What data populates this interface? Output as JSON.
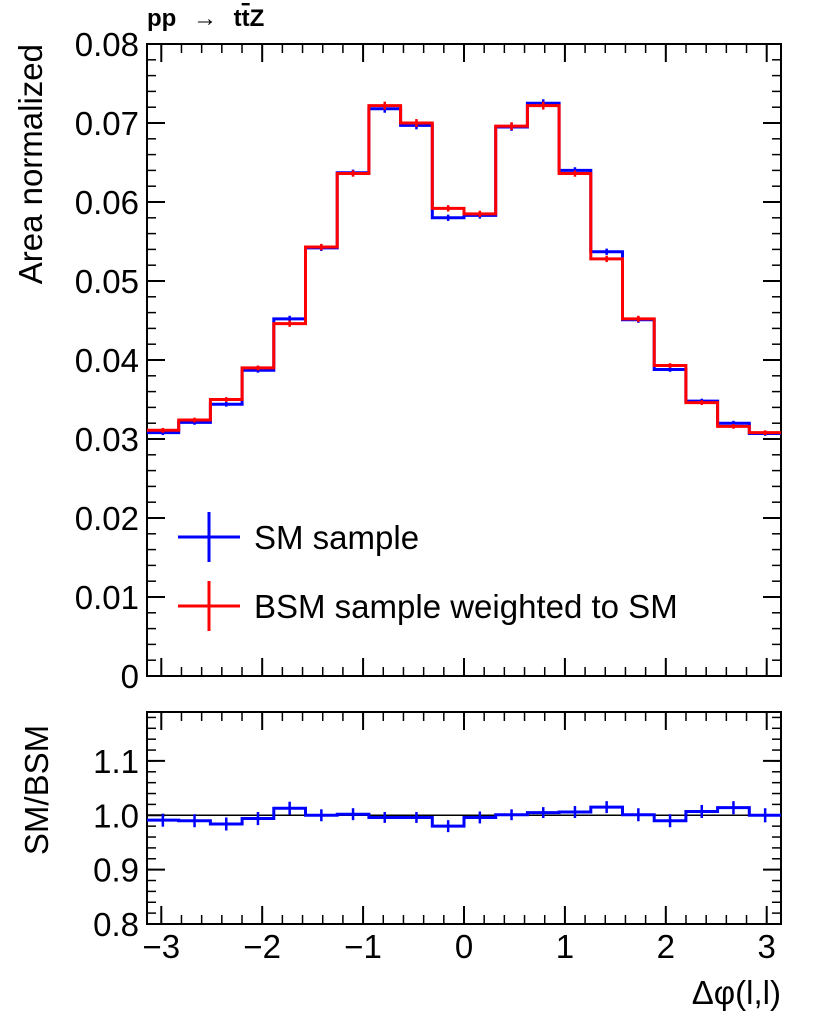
{
  "chart_data": [
    {
      "type": "line",
      "subtype": "step-histogram-with-errorbars",
      "title": "pp  →  t̅tZ",
      "title_parts": {
        "initial": "pp",
        "arrow": "→",
        "final_t": "t",
        "final_tbar": "t",
        "final_z": "Z"
      },
      "xlabel": "Δφ(l,l)",
      "ylabel": "Area normalized",
      "xlim": [
        -3.1416,
        3.1416
      ],
      "ylim": [
        0,
        0.08
      ],
      "bins": 20,
      "x_ticks": [
        -3,
        -2,
        -1,
        0,
        1,
        2,
        3
      ],
      "x_tick_labels": [
        "−3",
        "−2",
        "−1",
        "0",
        "1",
        "2",
        "3"
      ],
      "y_ticks": [
        0,
        0.01,
        0.02,
        0.03,
        0.04,
        0.05,
        0.06,
        0.07,
        0.08
      ],
      "y_tick_labels": [
        "0",
        "0.01",
        "0.02",
        "0.03",
        "0.04",
        "0.05",
        "0.06",
        "0.07",
        "0.08"
      ],
      "legend_position": "bottom-left",
      "series": [
        {
          "name": "SM sample",
          "color": "#0000ff",
          "values": [
            0.0308,
            0.0321,
            0.0344,
            0.0387,
            0.0452,
            0.0542,
            0.0637,
            0.0718,
            0.0697,
            0.058,
            0.0583,
            0.0695,
            0.0725,
            0.064,
            0.0537,
            0.0451,
            0.0388,
            0.0348,
            0.032,
            0.0307
          ],
          "errors": [
            0.0003,
            0.0003,
            0.0003,
            0.0003,
            0.0004,
            0.0004,
            0.0004,
            0.0005,
            0.0005,
            0.0004,
            0.0004,
            0.0005,
            0.0005,
            0.0004,
            0.0004,
            0.0004,
            0.0003,
            0.0003,
            0.0003,
            0.0003
          ]
        },
        {
          "name": "BSM sample weighted to SM",
          "color": "#ff0000",
          "values": [
            0.0311,
            0.0324,
            0.035,
            0.039,
            0.0446,
            0.0543,
            0.0636,
            0.0722,
            0.07,
            0.0592,
            0.0585,
            0.0696,
            0.0722,
            0.0636,
            0.0528,
            0.0452,
            0.0393,
            0.0346,
            0.0316,
            0.0308
          ],
          "errors": [
            0.0003,
            0.0003,
            0.0003,
            0.0003,
            0.0004,
            0.0004,
            0.0004,
            0.0005,
            0.0005,
            0.0004,
            0.0004,
            0.0005,
            0.0005,
            0.0004,
            0.0004,
            0.0004,
            0.0003,
            0.0003,
            0.0003,
            0.0003
          ]
        }
      ]
    },
    {
      "type": "line",
      "subtype": "ratio-step-with-errorbars",
      "xlabel": "Δφ(l,l)",
      "ylabel": "SM/BSM",
      "xlim": [
        -3.1416,
        3.1416
      ],
      "ylim": [
        0.8,
        1.19
      ],
      "reference_line": 1.0,
      "bins": 20,
      "x_ticks": [
        -3,
        -2,
        -1,
        0,
        1,
        2,
        3
      ],
      "x_tick_labels": [
        "−3",
        "−2",
        "−1",
        "0",
        "1",
        "2",
        "3"
      ],
      "y_ticks": [
        0.8,
        0.9,
        1.0,
        1.1
      ],
      "y_tick_labels": [
        "0.8",
        "0.9",
        "1.0",
        "1.1"
      ],
      "series": [
        {
          "name": "SM/BSM",
          "color": "#0000ff",
          "values": [
            0.991,
            0.99,
            0.984,
            0.994,
            1.013,
            1.0,
            1.002,
            0.996,
            0.996,
            0.98,
            0.996,
            1.001,
            1.005,
            1.006,
            1.015,
            1.001,
            0.99,
            1.007,
            1.014,
            1.0
          ],
          "errors": [
            0.012,
            0.012,
            0.012,
            0.012,
            0.012,
            0.011,
            0.011,
            0.01,
            0.01,
            0.011,
            0.011,
            0.01,
            0.01,
            0.011,
            0.011,
            0.012,
            0.012,
            0.012,
            0.012,
            0.013
          ]
        }
      ]
    }
  ]
}
